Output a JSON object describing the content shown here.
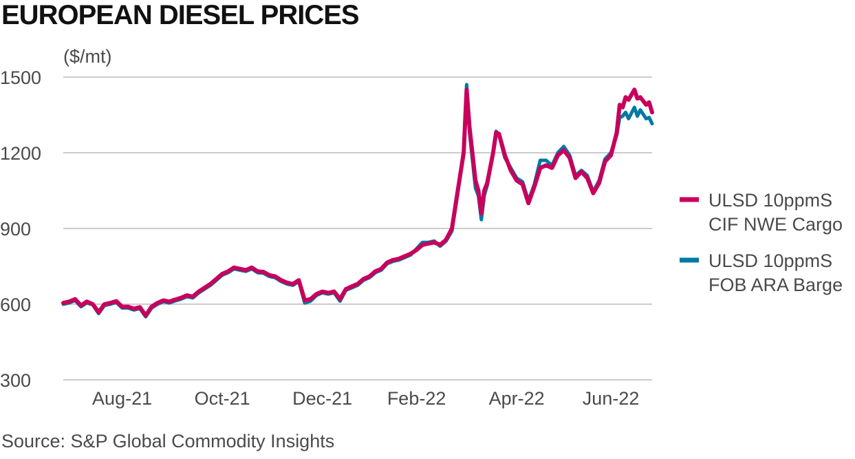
{
  "title": "EUROPEAN DIESEL PRICES",
  "source": "Source: S&P Global Commodity Insights",
  "chart_data": {
    "type": "line",
    "title": "EUROPEAN DIESEL PRICES",
    "ylabel": "($/mt)",
    "xlabel": "",
    "ylim": [
      300,
      1500
    ],
    "yticks": [
      300,
      600,
      900,
      1200,
      1500
    ],
    "x_tick_labels": [
      "Aug-21",
      "Oct-21",
      "Dec-21",
      "Feb-22",
      "Apr-22",
      "Jun-22"
    ],
    "x_tick_positions": [
      0.1,
      0.27,
      0.44,
      0.6,
      0.77,
      0.93
    ],
    "grid": true,
    "legend_position": "right",
    "colors": {
      "cif": "#c8005c",
      "fob": "#0079a3",
      "grid": "#cccccc"
    },
    "series": [
      {
        "name": "ULSD 10ppmS CIF NWE Cargo",
        "legend_lines": [
          "ULSD 10ppmS",
          "CIF NWE Cargo"
        ],
        "color": "#c8005c",
        "points": [
          [
            0.0,
            605
          ],
          [
            0.01,
            610
          ],
          [
            0.02,
            620
          ],
          [
            0.03,
            595
          ],
          [
            0.04,
            610
          ],
          [
            0.05,
            600
          ],
          [
            0.06,
            568
          ],
          [
            0.07,
            600
          ],
          [
            0.08,
            605
          ],
          [
            0.09,
            612
          ],
          [
            0.1,
            590
          ],
          [
            0.11,
            590
          ],
          [
            0.12,
            582
          ],
          [
            0.13,
            588
          ],
          [
            0.14,
            555
          ],
          [
            0.15,
            590
          ],
          [
            0.16,
            605
          ],
          [
            0.17,
            615
          ],
          [
            0.18,
            610
          ],
          [
            0.19,
            618
          ],
          [
            0.2,
            625
          ],
          [
            0.21,
            635
          ],
          [
            0.22,
            630
          ],
          [
            0.23,
            650
          ],
          [
            0.24,
            665
          ],
          [
            0.25,
            680
          ],
          [
            0.26,
            700
          ],
          [
            0.27,
            720
          ],
          [
            0.28,
            730
          ],
          [
            0.29,
            745
          ],
          [
            0.3,
            740
          ],
          [
            0.31,
            735
          ],
          [
            0.32,
            745
          ],
          [
            0.33,
            730
          ],
          [
            0.34,
            728
          ],
          [
            0.35,
            715
          ],
          [
            0.36,
            710
          ],
          [
            0.37,
            695
          ],
          [
            0.38,
            685
          ],
          [
            0.39,
            680
          ],
          [
            0.4,
            695
          ],
          [
            0.41,
            615
          ],
          [
            0.42,
            620
          ],
          [
            0.43,
            640
          ],
          [
            0.44,
            650
          ],
          [
            0.45,
            645
          ],
          [
            0.46,
            650
          ],
          [
            0.47,
            620
          ],
          [
            0.48,
            660
          ],
          [
            0.49,
            670
          ],
          [
            0.5,
            680
          ],
          [
            0.51,
            700
          ],
          [
            0.52,
            710
          ],
          [
            0.53,
            730
          ],
          [
            0.54,
            740
          ],
          [
            0.55,
            765
          ],
          [
            0.56,
            775
          ],
          [
            0.57,
            780
          ],
          [
            0.58,
            790
          ],
          [
            0.59,
            800
          ],
          [
            0.6,
            815
          ],
          [
            0.61,
            835
          ],
          [
            0.62,
            840
          ],
          [
            0.63,
            845
          ],
          [
            0.64,
            835
          ],
          [
            0.65,
            855
          ],
          [
            0.66,
            900
          ],
          [
            0.67,
            1050
          ],
          [
            0.68,
            1200
          ],
          [
            0.685,
            1450
          ],
          [
            0.69,
            1300
          ],
          [
            0.7,
            1090
          ],
          [
            0.705,
            1050
          ],
          [
            0.71,
            960
          ],
          [
            0.715,
            1050
          ],
          [
            0.72,
            1080
          ],
          [
            0.73,
            1200
          ],
          [
            0.735,
            1280
          ],
          [
            0.74,
            1275
          ],
          [
            0.75,
            1190
          ],
          [
            0.76,
            1130
          ],
          [
            0.77,
            1090
          ],
          [
            0.78,
            1075
          ],
          [
            0.79,
            1000
          ],
          [
            0.8,
            1065
          ],
          [
            0.81,
            1140
          ],
          [
            0.82,
            1150
          ],
          [
            0.83,
            1140
          ],
          [
            0.84,
            1190
          ],
          [
            0.85,
            1210
          ],
          [
            0.86,
            1180
          ],
          [
            0.87,
            1100
          ],
          [
            0.88,
            1125
          ],
          [
            0.89,
            1100
          ],
          [
            0.9,
            1040
          ],
          [
            0.91,
            1080
          ],
          [
            0.92,
            1165
          ],
          [
            0.93,
            1190
          ],
          [
            0.94,
            1280
          ],
          [
            0.945,
            1390
          ],
          [
            0.95,
            1380
          ],
          [
            0.955,
            1420
          ],
          [
            0.96,
            1410
          ],
          [
            0.97,
            1450
          ],
          [
            0.975,
            1415
          ],
          [
            0.98,
            1420
          ],
          [
            0.99,
            1390
          ],
          [
            0.995,
            1400
          ],
          [
            1.0,
            1360
          ]
        ]
      },
      {
        "name": "ULSD 10ppmS FOB ARA Barge",
        "legend_lines": [
          "ULSD 10ppmS",
          "FOB ARA Barge"
        ],
        "color": "#0079a3",
        "points": [
          [
            0.0,
            600
          ],
          [
            0.01,
            605
          ],
          [
            0.02,
            615
          ],
          [
            0.03,
            590
          ],
          [
            0.04,
            605
          ],
          [
            0.05,
            598
          ],
          [
            0.06,
            563
          ],
          [
            0.07,
            595
          ],
          [
            0.08,
            600
          ],
          [
            0.09,
            607
          ],
          [
            0.1,
            585
          ],
          [
            0.11,
            585
          ],
          [
            0.12,
            577
          ],
          [
            0.13,
            583
          ],
          [
            0.14,
            550
          ],
          [
            0.15,
            585
          ],
          [
            0.16,
            600
          ],
          [
            0.17,
            610
          ],
          [
            0.18,
            605
          ],
          [
            0.19,
            613
          ],
          [
            0.2,
            620
          ],
          [
            0.21,
            630
          ],
          [
            0.22,
            625
          ],
          [
            0.23,
            645
          ],
          [
            0.24,
            660
          ],
          [
            0.25,
            675
          ],
          [
            0.26,
            695
          ],
          [
            0.27,
            715
          ],
          [
            0.28,
            725
          ],
          [
            0.29,
            740
          ],
          [
            0.3,
            735
          ],
          [
            0.31,
            730
          ],
          [
            0.32,
            740
          ],
          [
            0.33,
            725
          ],
          [
            0.34,
            723
          ],
          [
            0.35,
            710
          ],
          [
            0.36,
            705
          ],
          [
            0.37,
            690
          ],
          [
            0.38,
            680
          ],
          [
            0.39,
            675
          ],
          [
            0.4,
            690
          ],
          [
            0.41,
            605
          ],
          [
            0.42,
            612
          ],
          [
            0.43,
            635
          ],
          [
            0.44,
            645
          ],
          [
            0.45,
            640
          ],
          [
            0.46,
            645
          ],
          [
            0.47,
            612
          ],
          [
            0.48,
            655
          ],
          [
            0.49,
            665
          ],
          [
            0.5,
            675
          ],
          [
            0.51,
            695
          ],
          [
            0.52,
            705
          ],
          [
            0.53,
            725
          ],
          [
            0.54,
            735
          ],
          [
            0.55,
            760
          ],
          [
            0.56,
            770
          ],
          [
            0.57,
            775
          ],
          [
            0.58,
            785
          ],
          [
            0.59,
            795
          ],
          [
            0.6,
            820
          ],
          [
            0.61,
            845
          ],
          [
            0.62,
            845
          ],
          [
            0.63,
            850
          ],
          [
            0.64,
            830
          ],
          [
            0.65,
            850
          ],
          [
            0.66,
            890
          ],
          [
            0.67,
            1040
          ],
          [
            0.68,
            1210
          ],
          [
            0.685,
            1470
          ],
          [
            0.69,
            1280
          ],
          [
            0.7,
            1060
          ],
          [
            0.705,
            1030
          ],
          [
            0.71,
            935
          ],
          [
            0.715,
            1030
          ],
          [
            0.72,
            1070
          ],
          [
            0.73,
            1200
          ],
          [
            0.735,
            1285
          ],
          [
            0.74,
            1270
          ],
          [
            0.75,
            1180
          ],
          [
            0.76,
            1140
          ],
          [
            0.77,
            1100
          ],
          [
            0.78,
            1085
          ],
          [
            0.79,
            1010
          ],
          [
            0.8,
            1075
          ],
          [
            0.81,
            1170
          ],
          [
            0.82,
            1170
          ],
          [
            0.83,
            1150
          ],
          [
            0.84,
            1200
          ],
          [
            0.85,
            1225
          ],
          [
            0.86,
            1190
          ],
          [
            0.87,
            1110
          ],
          [
            0.88,
            1130
          ],
          [
            0.89,
            1110
          ],
          [
            0.9,
            1045
          ],
          [
            0.91,
            1090
          ],
          [
            0.92,
            1175
          ],
          [
            0.93,
            1200
          ],
          [
            0.94,
            1270
          ],
          [
            0.945,
            1340
          ],
          [
            0.95,
            1345
          ],
          [
            0.955,
            1360
          ],
          [
            0.96,
            1335
          ],
          [
            0.97,
            1380
          ],
          [
            0.975,
            1345
          ],
          [
            0.98,
            1370
          ],
          [
            0.99,
            1335
          ],
          [
            0.995,
            1340
          ],
          [
            1.0,
            1315
          ]
        ]
      }
    ]
  }
}
